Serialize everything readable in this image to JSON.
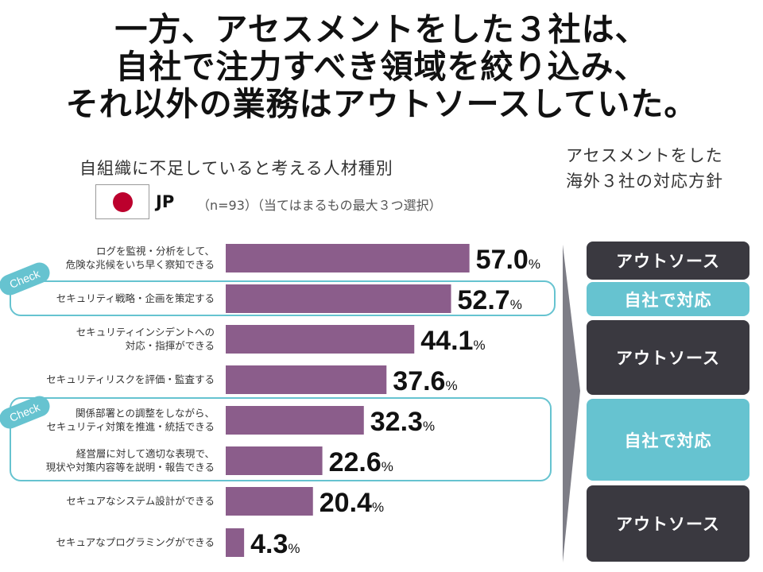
{
  "title": {
    "line1": "一方、アセスメントをした３社は、",
    "line2": "自社で注力すべき領域を絞り込み、",
    "line3": "それ以外の業務はアウトソースしていた。"
  },
  "left_header": {
    "subtitle": "自組織に不足していると考える人材種別",
    "country": "JP",
    "note": "（n=93）（当てはまるもの最大３つ選択）"
  },
  "right_header": {
    "line1": "アセスメントをした",
    "line2": "海外３社の対応方針"
  },
  "check_label": "Check",
  "chart_data": {
    "type": "bar",
    "orientation": "horizontal",
    "unit": "%",
    "categories": [
      [
        "ログを監視・分析をして、",
        "危険な兆候をいち早く察知できる"
      ],
      [
        "セキュリティ戦略・企画を策定する"
      ],
      [
        "セキュリティインシデントへの",
        "対応・指揮ができる"
      ],
      [
        "セキュリティリスクを評価・監査する"
      ],
      [
        "関係部署との調整をしながら、",
        "セキュリティ対策を推進・統括できる"
      ],
      [
        "経営層に対して適切な表現で、",
        "現状や対策内容等を説明・報告できる"
      ],
      [
        "セキュアなシステム設計ができる"
      ],
      [
        "セキュアなプログラミングができる"
      ]
    ],
    "values": [
      57.0,
      52.7,
      44.1,
      37.6,
      32.3,
      22.6,
      20.4,
      4.3
    ],
    "value_labels": [
      "57.0",
      "52.7",
      "44.1",
      "37.6",
      "32.3",
      "22.6",
      "20.4",
      "4.3"
    ],
    "bar_color": "#8b5d8b"
  },
  "policy_boxes": [
    {
      "label": "アウトソース",
      "color": "#3a3940"
    },
    {
      "label": "自社で対応",
      "color": "#66c3d0"
    },
    {
      "label": "アウトソース",
      "color": "#3a3940"
    },
    {
      "label": "自社で対応",
      "color": "#66c3d0"
    },
    {
      "label": "アウトソース",
      "color": "#3a3940"
    }
  ],
  "colors": {
    "accent": "#66c3d0",
    "dark": "#3a3940",
    "flag_red": "#bc002d"
  }
}
